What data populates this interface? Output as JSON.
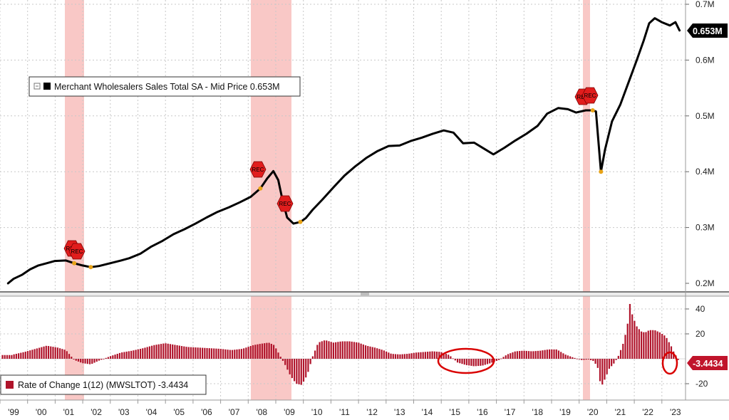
{
  "chart_data": [
    {
      "type": "line",
      "panel": "top",
      "legend": "Merchant Wholesalers Sales Total SA - Mid Price 0.653M",
      "last_value_label": "0.653M",
      "y_ticks": [
        "0.2M",
        "0.3M",
        "0.4M",
        "0.5M",
        "0.6M",
        "0.7M"
      ],
      "ylim": [
        0.19,
        0.705
      ],
      "units": "M",
      "recession_label": "REC",
      "series": [
        {
          "values": [
            [
              1998.8,
              0.2
            ],
            [
              1999.0,
              0.208
            ],
            [
              1999.3,
              0.215
            ],
            [
              1999.6,
              0.225
            ],
            [
              1999.9,
              0.232
            ],
            [
              2000.2,
              0.236
            ],
            [
              2000.5,
              0.24
            ],
            [
              2000.9,
              0.241
            ],
            [
              2001.2,
              0.236
            ],
            [
              2001.5,
              0.232
            ],
            [
              2001.8,
              0.229
            ],
            [
              2002.1,
              0.231
            ],
            [
              2002.5,
              0.236
            ],
            [
              2002.9,
              0.241
            ],
            [
              2003.2,
              0.245
            ],
            [
              2003.6,
              0.253
            ],
            [
              2004.0,
              0.266
            ],
            [
              2004.4,
              0.276
            ],
            [
              2004.8,
              0.288
            ],
            [
              2005.2,
              0.297
            ],
            [
              2005.6,
              0.307
            ],
            [
              2006.0,
              0.318
            ],
            [
              2006.4,
              0.328
            ],
            [
              2006.8,
              0.336
            ],
            [
              2007.2,
              0.345
            ],
            [
              2007.6,
              0.355
            ],
            [
              2007.95,
              0.37
            ],
            [
              2008.2,
              0.388
            ],
            [
              2008.42,
              0.401
            ],
            [
              2008.6,
              0.385
            ],
            [
              2008.75,
              0.35
            ],
            [
              2008.92,
              0.318
            ],
            [
              2009.15,
              0.307
            ],
            [
              2009.4,
              0.31
            ],
            [
              2009.6,
              0.317
            ],
            [
              2009.85,
              0.332
            ],
            [
              2010.2,
              0.35
            ],
            [
              2010.6,
              0.372
            ],
            [
              2011.0,
              0.393
            ],
            [
              2011.4,
              0.41
            ],
            [
              2011.8,
              0.425
            ],
            [
              2012.2,
              0.437
            ],
            [
              2012.6,
              0.446
            ],
            [
              2013.0,
              0.447
            ],
            [
              2013.4,
              0.455
            ],
            [
              2013.8,
              0.461
            ],
            [
              2014.2,
              0.468
            ],
            [
              2014.6,
              0.474
            ],
            [
              2014.95,
              0.47
            ],
            [
              2015.3,
              0.451
            ],
            [
              2015.7,
              0.452
            ],
            [
              2016.1,
              0.44
            ],
            [
              2016.4,
              0.431
            ],
            [
              2016.8,
              0.443
            ],
            [
              2017.2,
              0.456
            ],
            [
              2017.6,
              0.468
            ],
            [
              2018.0,
              0.482
            ],
            [
              2018.35,
              0.504
            ],
            [
              2018.75,
              0.514
            ],
            [
              2019.1,
              0.512
            ],
            [
              2019.4,
              0.506
            ],
            [
              2019.75,
              0.51
            ],
            [
              2020.0,
              0.51
            ],
            [
              2020.12,
              0.508
            ],
            [
              2020.2,
              0.46
            ],
            [
              2020.3,
              0.4
            ],
            [
              2020.45,
              0.44
            ],
            [
              2020.7,
              0.49
            ],
            [
              2021.0,
              0.52
            ],
            [
              2021.3,
              0.56
            ],
            [
              2021.6,
              0.6
            ],
            [
              2021.85,
              0.635
            ],
            [
              2022.05,
              0.666
            ],
            [
              2022.25,
              0.675
            ],
            [
              2022.5,
              0.668
            ],
            [
              2022.8,
              0.662
            ],
            [
              2023.0,
              0.668
            ],
            [
              2023.15,
              0.653
            ]
          ]
        }
      ]
    },
    {
      "type": "bar",
      "panel": "bottom",
      "legend": "Rate of Change 1(12) (MWSLTOT) -3.4434",
      "last_value_label": "-3.4434",
      "y_ticks": [
        "40",
        "20",
        "-20"
      ],
      "ylim": [
        -26,
        46
      ],
      "x_ticks": [
        "'99",
        "'00",
        "'01",
        "'02",
        "'03",
        "'04",
        "'05",
        "'06",
        "'07",
        "'08",
        "'09",
        "'10",
        "'11",
        "'12",
        "'13",
        "'14",
        "'15",
        "'16",
        "'17",
        "'18",
        "'19",
        "'20",
        "'21",
        "'22",
        "'23"
      ],
      "series": [
        {
          "values": [
            [
              1999.0,
              3.5
            ],
            [
              1999.4,
              5.5
            ],
            [
              1999.8,
              8
            ],
            [
              2000.2,
              10.5
            ],
            [
              2000.6,
              9
            ],
            [
              2000.9,
              7
            ],
            [
              2001.2,
              -1
            ],
            [
              2001.5,
              -3.5
            ],
            [
              2001.8,
              -4.5
            ],
            [
              2002.1,
              -1.5
            ],
            [
              2002.5,
              2
            ],
            [
              2002.9,
              5
            ],
            [
              2003.3,
              6.5
            ],
            [
              2003.7,
              8.5
            ],
            [
              2004.1,
              11
            ],
            [
              2004.5,
              12.5
            ],
            [
              2004.9,
              11
            ],
            [
              2005.3,
              9.5
            ],
            [
              2005.7,
              9
            ],
            [
              2006.1,
              8.5
            ],
            [
              2006.5,
              8
            ],
            [
              2006.9,
              7
            ],
            [
              2007.3,
              8
            ],
            [
              2007.7,
              11
            ],
            [
              2007.95,
              12
            ],
            [
              2008.25,
              13
            ],
            [
              2008.45,
              11
            ],
            [
              2008.65,
              3
            ],
            [
              2008.85,
              -5
            ],
            [
              2009.05,
              -14
            ],
            [
              2009.25,
              -20
            ],
            [
              2009.45,
              -21
            ],
            [
              2009.65,
              -13
            ],
            [
              2009.85,
              2
            ],
            [
              2010.05,
              13
            ],
            [
              2010.3,
              15
            ],
            [
              2010.6,
              13
            ],
            [
              2010.9,
              14
            ],
            [
              2011.2,
              14
            ],
            [
              2011.5,
              13
            ],
            [
              2011.8,
              10.5
            ],
            [
              2012.1,
              9
            ],
            [
              2012.4,
              7
            ],
            [
              2012.7,
              4
            ],
            [
              2013.0,
              3.5
            ],
            [
              2013.3,
              4
            ],
            [
              2013.6,
              5
            ],
            [
              2013.9,
              5.5
            ],
            [
              2014.2,
              6
            ],
            [
              2014.5,
              5.5
            ],
            [
              2014.8,
              3
            ],
            [
              2015.1,
              -3
            ],
            [
              2015.4,
              -5
            ],
            [
              2015.7,
              -6
            ],
            [
              2016.0,
              -5.5
            ],
            [
              2016.3,
              -3.5
            ],
            [
              2016.6,
              -1
            ],
            [
              2016.9,
              3.5
            ],
            [
              2017.2,
              6
            ],
            [
              2017.5,
              6.5
            ],
            [
              2017.8,
              6
            ],
            [
              2018.1,
              6.5
            ],
            [
              2018.4,
              7.5
            ],
            [
              2018.7,
              7.5
            ],
            [
              2019.0,
              3.5
            ],
            [
              2019.3,
              1
            ],
            [
              2019.6,
              -1
            ],
            [
              2019.85,
              -0.5
            ],
            [
              2020.05,
              -2
            ],
            [
              2020.2,
              -8
            ],
            [
              2020.3,
              -23
            ],
            [
              2020.45,
              -16
            ],
            [
              2020.6,
              -8
            ],
            [
              2020.8,
              -3
            ],
            [
              2020.95,
              3
            ],
            [
              2021.1,
              12
            ],
            [
              2021.25,
              25
            ],
            [
              2021.35,
              44
            ],
            [
              2021.45,
              34
            ],
            [
              2021.6,
              26
            ],
            [
              2021.75,
              22
            ],
            [
              2021.9,
              21
            ],
            [
              2022.05,
              23
            ],
            [
              2022.25,
              23
            ],
            [
              2022.45,
              21
            ],
            [
              2022.65,
              18
            ],
            [
              2022.85,
              10
            ],
            [
              2022.95,
              5
            ],
            [
              2023.05,
              1.5
            ],
            [
              2023.15,
              -3.4434
            ]
          ]
        }
      ]
    }
  ]
}
